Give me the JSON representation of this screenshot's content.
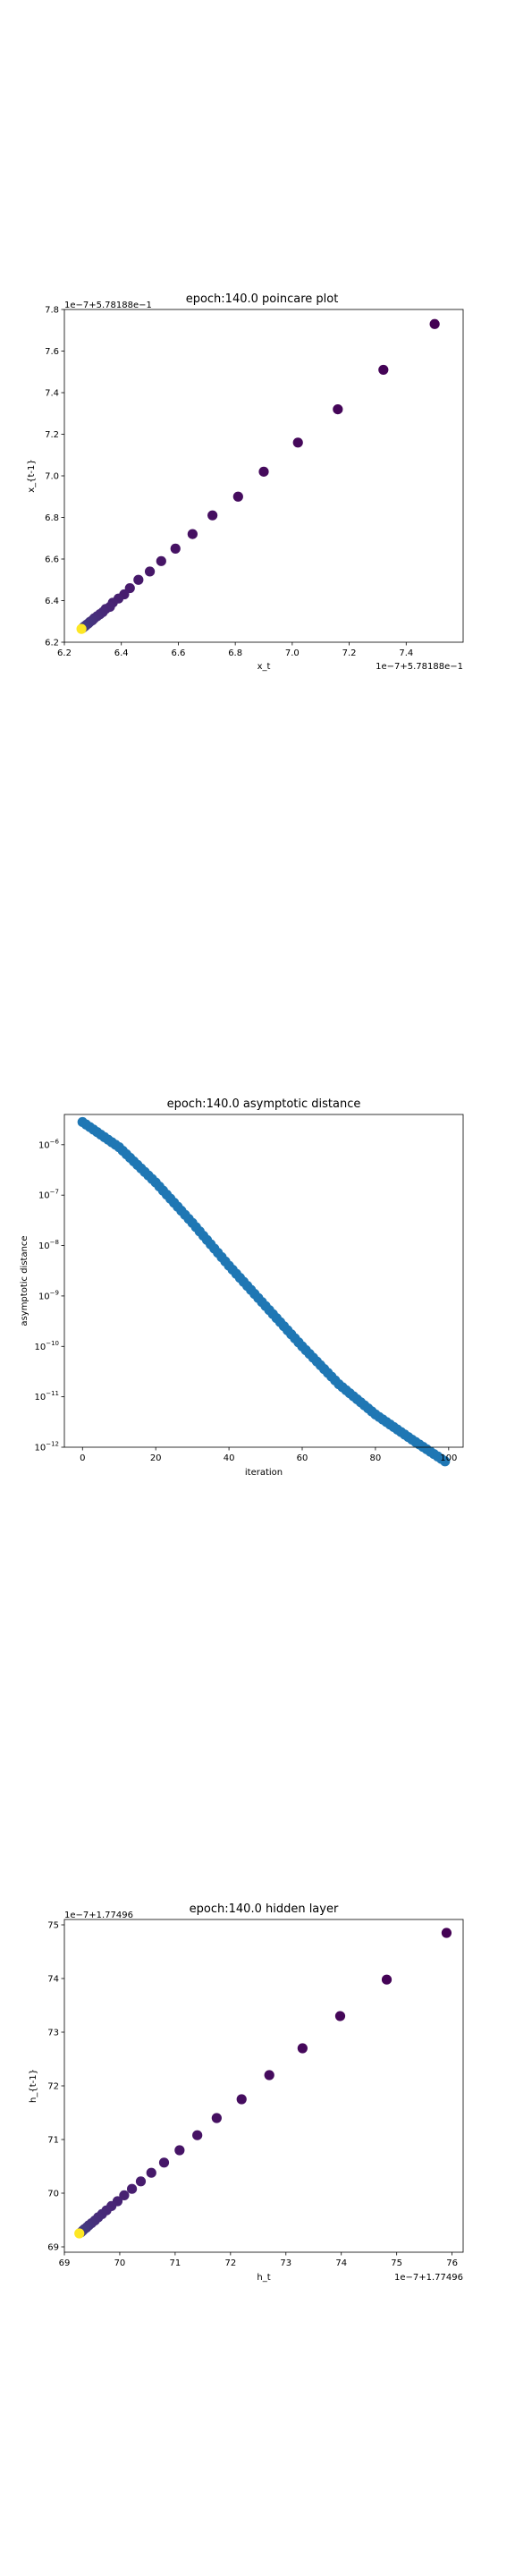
{
  "chart_data": [
    {
      "type": "scatter",
      "title": "epoch:140.0 poincare plot",
      "xlabel": "x_t",
      "ylabel": "x_{t-1}",
      "x_offset_text": "1e−7+5.78188e−1",
      "y_offset_text": "1e−7+5.78188e−1",
      "xlim": [
        6.2,
        7.6
      ],
      "ylim": [
        6.2,
        7.8
      ],
      "x_ticks": [
        "6.2",
        "6.4",
        "6.6",
        "6.8",
        "7.0",
        "7.2",
        "7.4"
      ],
      "y_ticks": [
        "6.2",
        "6.4",
        "6.6",
        "6.8",
        "7.0",
        "7.2",
        "7.4",
        "7.6",
        "7.8"
      ],
      "grid": false,
      "colormap": "viridis",
      "points": [
        [
          7.5,
          7.73
        ],
        [
          7.32,
          7.51
        ],
        [
          7.16,
          7.32
        ],
        [
          7.02,
          7.16
        ],
        [
          6.9,
          7.02
        ],
        [
          6.81,
          6.9
        ],
        [
          6.72,
          6.81
        ],
        [
          6.65,
          6.72
        ],
        [
          6.59,
          6.65
        ],
        [
          6.54,
          6.59
        ],
        [
          6.5,
          6.54
        ],
        [
          6.46,
          6.5
        ],
        [
          6.43,
          6.46
        ],
        [
          6.41,
          6.43
        ],
        [
          6.39,
          6.41
        ],
        [
          6.37,
          6.39
        ],
        [
          6.36,
          6.37
        ],
        [
          6.345,
          6.36
        ],
        [
          6.335,
          6.345
        ],
        [
          6.325,
          6.335
        ],
        [
          6.315,
          6.325
        ],
        [
          6.305,
          6.315
        ],
        [
          6.298,
          6.305
        ],
        [
          6.29,
          6.298
        ],
        [
          6.284,
          6.29
        ],
        [
          6.278,
          6.284
        ],
        [
          6.273,
          6.278
        ],
        [
          6.268,
          6.273
        ],
        [
          6.264,
          6.268
        ],
        [
          6.26,
          6.264
        ]
      ]
    },
    {
      "type": "scatter",
      "title": "epoch:140.0 asymptotic distance",
      "xlabel": "iteration",
      "ylabel": "asymptotic distance",
      "xlim": [
        -4.95,
        103.95
      ],
      "ylim_log10": [
        -12,
        -5.4
      ],
      "x_ticks": [
        "0",
        "20",
        "40",
        "60",
        "80",
        "100"
      ],
      "y_ticks": [
        {
          "base": "10",
          "exp": "−12"
        },
        {
          "base": "10",
          "exp": "−11"
        },
        {
          "base": "10",
          "exp": "−10"
        },
        {
          "base": "10",
          "exp": "−9"
        },
        {
          "base": "10",
          "exp": "−8"
        },
        {
          "base": "10",
          "exp": "−7"
        },
        {
          "base": "10",
          "exp": "−6"
        }
      ],
      "y_scale": "log",
      "grid": false,
      "color": "#1f77b4",
      "log10_values": [
        [
          0,
          -5.55
        ],
        [
          10,
          -6.05
        ],
        [
          20,
          -6.75
        ],
        [
          30,
          -7.55
        ],
        [
          40,
          -8.4
        ],
        [
          50,
          -9.2
        ],
        [
          60,
          -10.0
        ],
        [
          70,
          -10.75
        ],
        [
          80,
          -11.35
        ],
        [
          90,
          -11.85
        ],
        [
          99,
          -12.28
        ]
      ]
    },
    {
      "type": "scatter",
      "title": "epoch:140.0 hidden layer",
      "xlabel": "h_t",
      "ylabel": "h_{t-1}",
      "x_offset_text": "1e−7+1.77496",
      "y_offset_text": "1e−7+1.77496",
      "xlim": [
        69.0,
        76.2
      ],
      "ylim": [
        68.9,
        75.1
      ],
      "x_ticks": [
        "69",
        "70",
        "71",
        "72",
        "73",
        "74",
        "75",
        "76"
      ],
      "y_ticks": [
        "69",
        "70",
        "71",
        "72",
        "73",
        "74",
        "75"
      ],
      "grid": false,
      "colormap": "viridis",
      "points": [
        [
          75.9,
          74.85
        ],
        [
          74.82,
          73.98
        ],
        [
          73.98,
          73.3
        ],
        [
          73.3,
          72.7
        ],
        [
          72.7,
          72.2
        ],
        [
          72.2,
          71.75
        ],
        [
          71.75,
          71.4
        ],
        [
          71.4,
          71.08
        ],
        [
          71.08,
          70.8
        ],
        [
          70.8,
          70.57
        ],
        [
          70.57,
          70.38
        ],
        [
          70.38,
          70.22
        ],
        [
          70.22,
          70.08
        ],
        [
          70.08,
          69.96
        ],
        [
          69.96,
          69.85
        ],
        [
          69.85,
          69.76
        ],
        [
          69.76,
          69.68
        ],
        [
          69.68,
          69.61
        ],
        [
          69.61,
          69.55
        ],
        [
          69.55,
          69.49
        ],
        [
          69.49,
          69.44
        ],
        [
          69.44,
          69.4
        ],
        [
          69.4,
          69.36
        ],
        [
          69.36,
          69.33
        ],
        [
          69.33,
          69.3
        ],
        [
          69.3,
          69.27
        ],
        [
          69.27,
          69.25
        ]
      ]
    }
  ]
}
